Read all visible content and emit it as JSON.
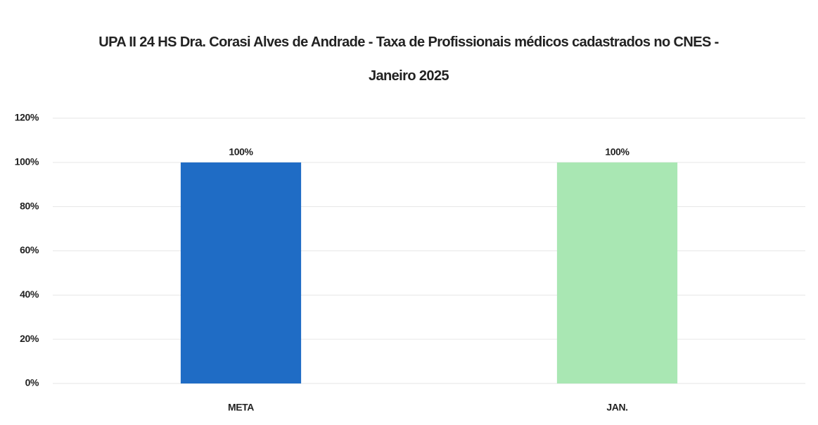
{
  "chart_data": {
    "type": "bar",
    "title": "UPA II 24 HS  Dra. Corasi Alves de Andrade - Taxa de Profissionais médicos cadastrados no CNES - Janeiro 2025",
    "categories": [
      "META",
      "JAN."
    ],
    "values": [
      100,
      100
    ],
    "value_labels": [
      "100%",
      "100%"
    ],
    "colors": [
      "#1f6cc5",
      "#a9e7b3"
    ],
    "ylim": [
      0,
      120
    ],
    "yticks": [
      {
        "value": 0,
        "label": "0%"
      },
      {
        "value": 20,
        "label": "20%"
      },
      {
        "value": 40,
        "label": "40%"
      },
      {
        "value": 60,
        "label": "60%"
      },
      {
        "value": 80,
        "label": "80%"
      },
      {
        "value": 100,
        "label": "100%"
      },
      {
        "value": 120,
        "label": "120%"
      }
    ],
    "grid": true
  }
}
